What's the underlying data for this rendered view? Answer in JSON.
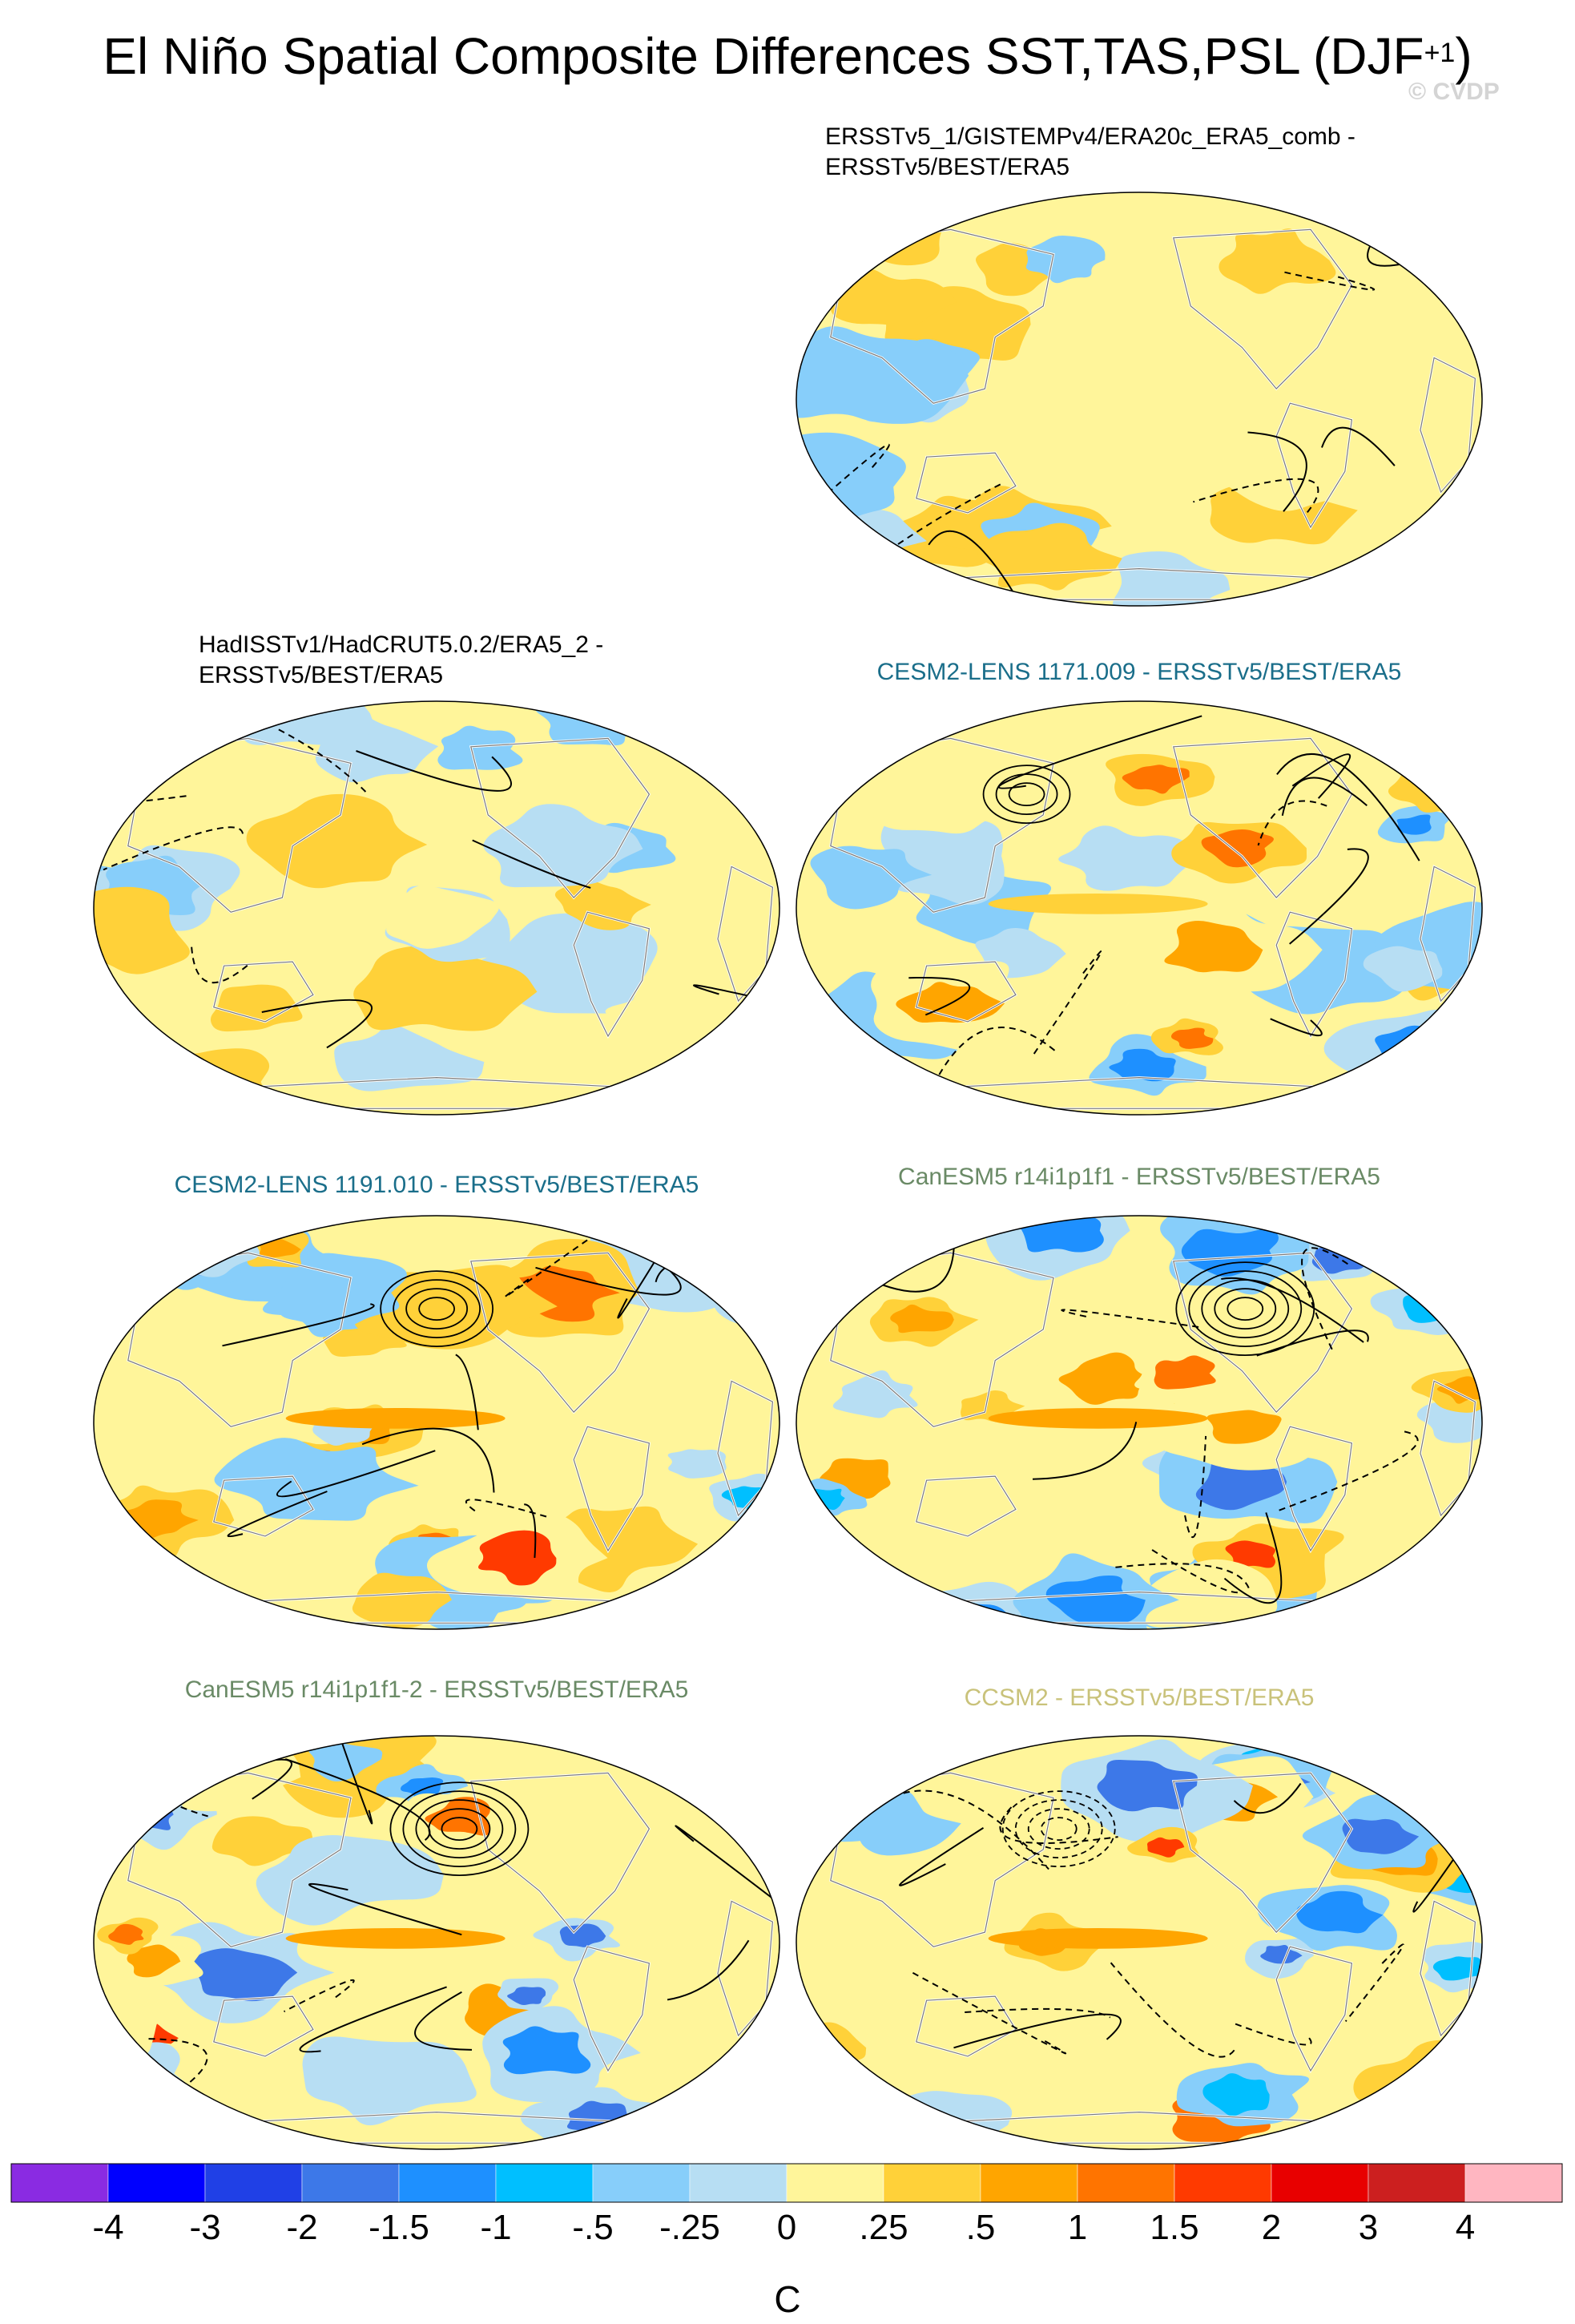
{
  "title": {
    "main": "El Niño Spatial Composite Differences SST,TAS,PSL (DJF",
    "superscript": "+1",
    "close": ")"
  },
  "watermark": "© CVDP",
  "chart_data": {
    "type": "heatmap",
    "projection": "Robinson (Pacific-centred)",
    "contour_variable": "PSL",
    "shaded_variables": [
      "SST",
      "TAS"
    ],
    "panels": [
      {
        "title_line1": "ERSSTv5_1/GISTEMPv4/ERA20c_ERA5_comb -",
        "title_line2": "ERSSTv5/BEST/ERA5",
        "title_color": "#000000",
        "intensity": 0.25,
        "seed": 3
      },
      {
        "title_line1": "HadISSTv1/HadCRUT5.0.2/ERA5_2 -",
        "title_line2": "ERSSTv5/BEST/ERA5",
        "title_color": "#000000",
        "intensity": 0.25,
        "seed": 7
      },
      {
        "title_line1": "CESM2-LENS 1171.009 - ERSSTv5/BEST/ERA5",
        "title_line2": "",
        "title_color": "#1a6e8a",
        "intensity": 0.6,
        "seed": 11
      },
      {
        "title_line1": "CESM2-LENS 1191.010 - ERSSTv5/BEST/ERA5",
        "title_line2": "",
        "title_color": "#1a6e8a",
        "intensity": 0.75,
        "seed": 13
      },
      {
        "title_line1": "CanESM5 r14i1p1f1 - ERSSTv5/BEST/ERA5",
        "title_line2": "",
        "title_color": "#6a8a66",
        "intensity": 0.9,
        "seed": 17
      },
      {
        "title_line1": "CanESM5 r14i1p1f1-2 - ERSSTv5/BEST/ERA5",
        "title_line2": "",
        "title_color": "#6a8a66",
        "intensity": 0.9,
        "seed": 19
      },
      {
        "title_line1": "CCSM2 - ERSSTv5/BEST/ERA5",
        "title_line2": "",
        "title_color": "#c9c27a",
        "intensity": 0.8,
        "seed": 23
      }
    ],
    "colorbar": {
      "label": "C",
      "tick_labels": [
        "-4",
        "-3",
        "-2",
        "-1.5",
        "-1",
        "-.5",
        "-.25",
        "0",
        ".25",
        ".5",
        "1",
        "1.5",
        "2",
        "3",
        "4"
      ],
      "levels": [
        -4,
        -3,
        -2,
        -1.5,
        -1,
        -0.5,
        -0.25,
        0,
        0.25,
        0.5,
        1,
        1.5,
        2,
        3,
        4
      ],
      "colors": [
        "#8a2be2",
        "#0000ff",
        "#2040e6",
        "#3d78e8",
        "#1e90ff",
        "#00bfff",
        "#87cefa",
        "#b7def3",
        "#fff59a",
        "#ffd139",
        "#ffa500",
        "#ff7400",
        "#ff3a00",
        "#e80000",
        "#cc1f1f",
        "#ffb6c1"
      ]
    }
  }
}
